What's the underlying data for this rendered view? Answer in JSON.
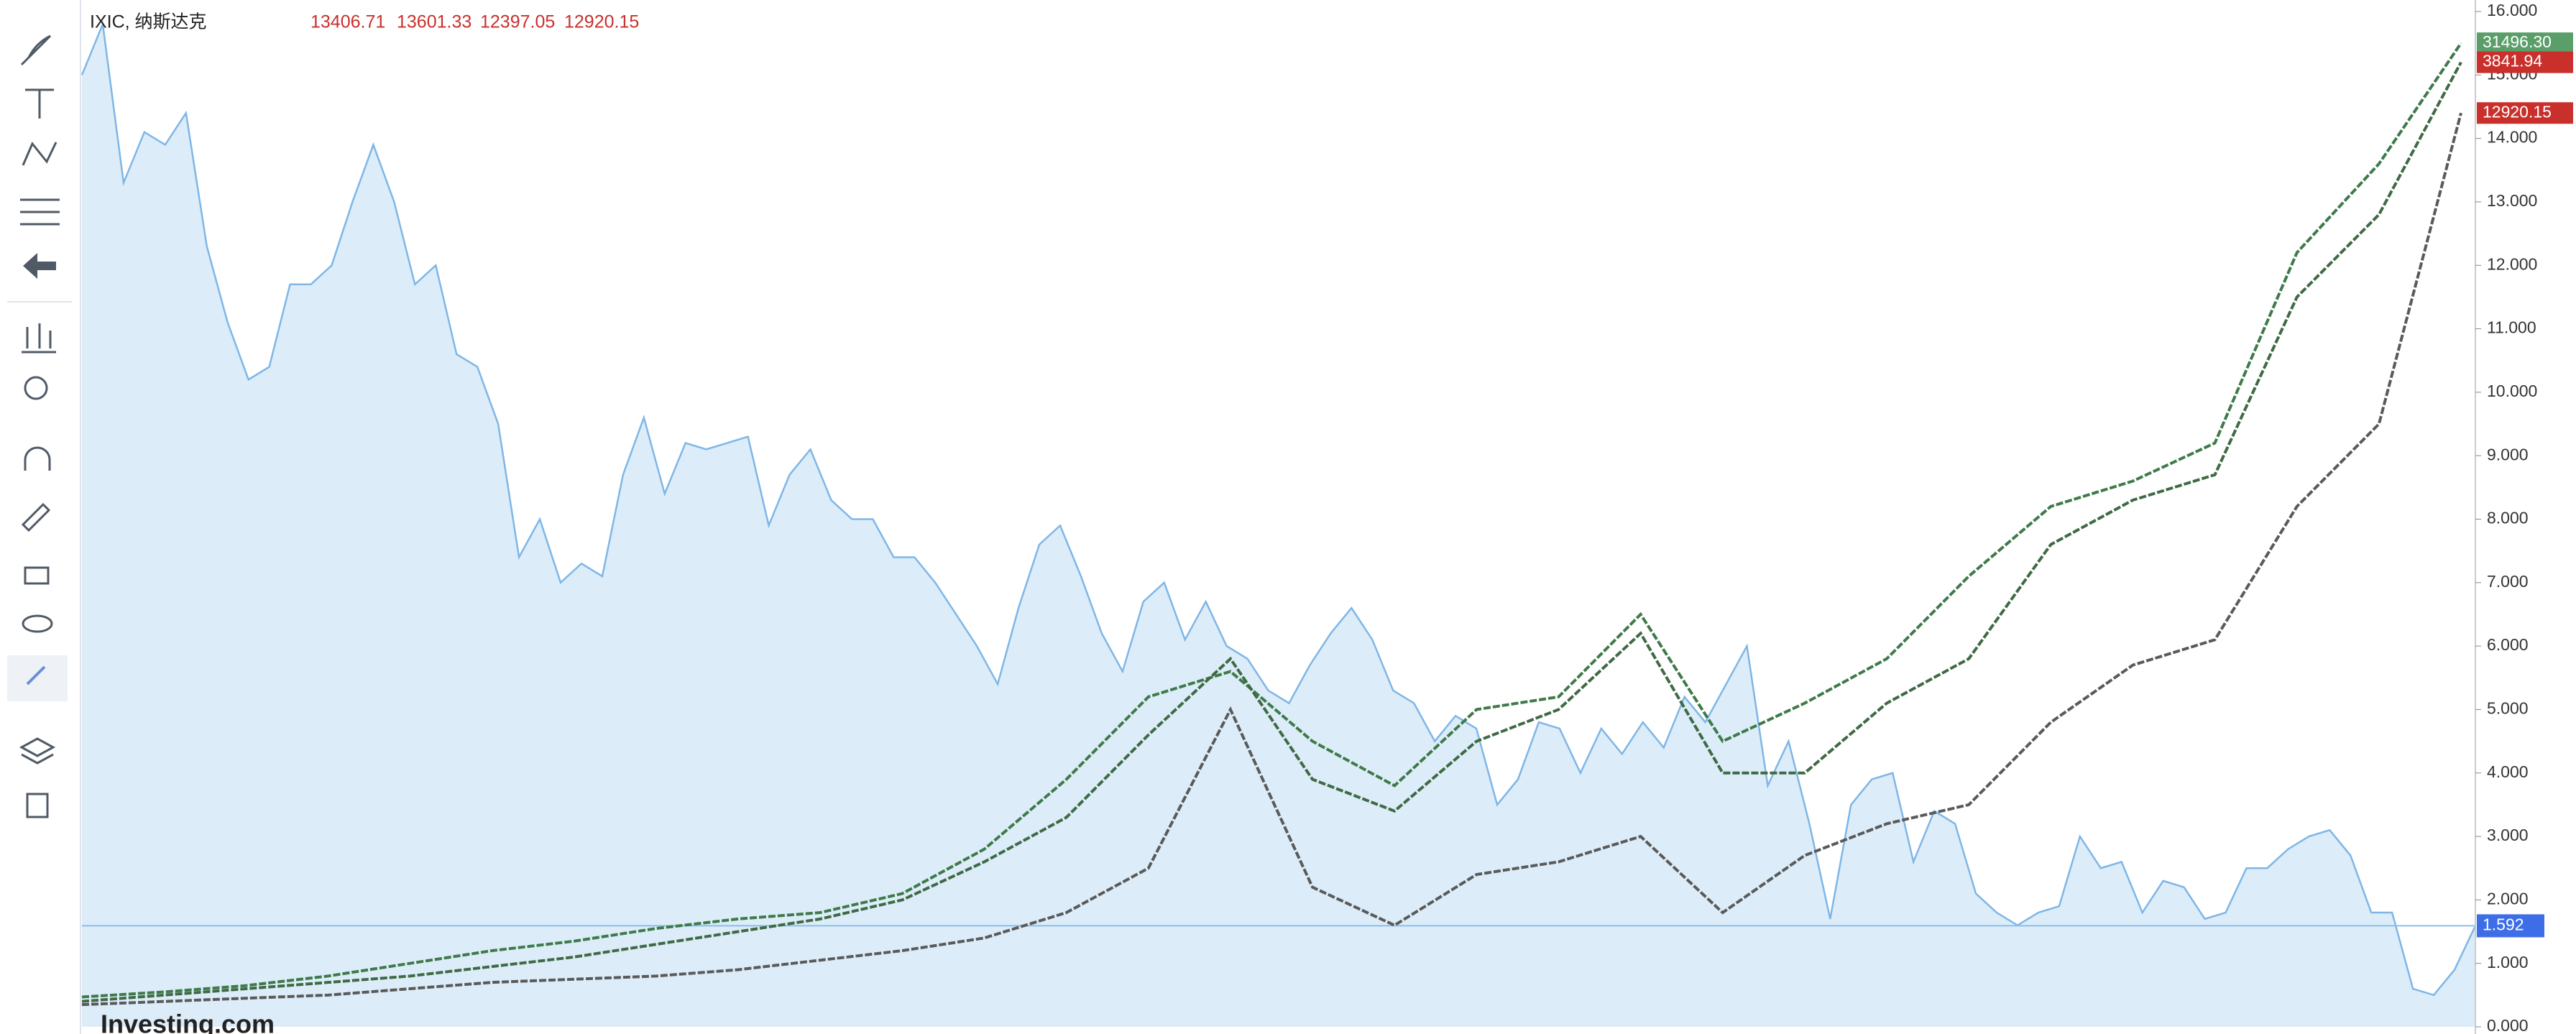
{
  "header": {
    "symbol": "IXIC, 纳斯达克",
    "ohlc": [
      "13406.71",
      "13601.33",
      "12397.05",
      "12920.15"
    ]
  },
  "logo": "Investing.com",
  "chart_data": {
    "type": "line",
    "ylim": [
      0,
      16
    ],
    "yticks": [
      {
        "value": 0,
        "label": "0.000"
      },
      {
        "value": 1,
        "label": "1.000"
      },
      {
        "value": 2,
        "label": "2.000"
      },
      {
        "value": 3,
        "label": "3.000"
      },
      {
        "value": 4,
        "label": "4.000"
      },
      {
        "value": 5,
        "label": "5.000"
      },
      {
        "value": 6,
        "label": "6.000"
      },
      {
        "value": 7,
        "label": "7.000"
      },
      {
        "value": 8,
        "label": "8.000"
      },
      {
        "value": 9,
        "label": "9.000"
      },
      {
        "value": 10,
        "label": "10.000"
      },
      {
        "value": 11,
        "label": "11.000"
      },
      {
        "value": 12,
        "label": "12.000"
      },
      {
        "value": 13,
        "label": "13.000"
      },
      {
        "value": 14,
        "label": "14.000"
      },
      {
        "value": 15,
        "label": "15.000"
      },
      {
        "value": 16,
        "label": "16.000"
      }
    ],
    "area": {
      "color": "#7fb6e6",
      "fill": "#dcedf9",
      "last_label": "1.592",
      "last_value": 1.592,
      "label_color": "#3d6ee8",
      "values": [
        15.0,
        15.8,
        13.3,
        14.1,
        13.9,
        14.4,
        12.3,
        11.1,
        10.2,
        10.4,
        11.7,
        11.7,
        12.0,
        13.0,
        13.9,
        13.0,
        11.7,
        12.0,
        10.6,
        10.4,
        9.5,
        7.4,
        8.0,
        7.0,
        7.3,
        7.1,
        8.7,
        9.6,
        8.4,
        9.2,
        9.1,
        9.2,
        9.3,
        7.9,
        8.7,
        9.1,
        8.3,
        8.0,
        8.0,
        7.4,
        7.4,
        7.0,
        6.5,
        6.0,
        5.4,
        6.6,
        7.6,
        7.9,
        7.1,
        6.2,
        5.6,
        6.7,
        7.0,
        6.1,
        6.7,
        6.0,
        5.8,
        5.3,
        5.1,
        5.7,
        6.2,
        6.6,
        6.1,
        5.3,
        5.1,
        4.5,
        4.9,
        4.7,
        3.5,
        3.9,
        4.8,
        4.7,
        4.0,
        4.7,
        4.3,
        4.8,
        4.4,
        5.2,
        4.8,
        5.4,
        6.0,
        3.8,
        4.5,
        3.2,
        1.7,
        3.5,
        3.9,
        4.0,
        2.6,
        3.4,
        3.2,
        2.1,
        1.8,
        1.6,
        1.8,
        1.9,
        3.0,
        2.5,
        2.6,
        1.8,
        2.3,
        2.2,
        1.7,
        1.8,
        2.5,
        2.5,
        2.8,
        3.0,
        3.1,
        2.7,
        1.8,
        1.8,
        0.6,
        0.5,
        0.9,
        1.592
      ]
    },
    "series": [
      {
        "color": "#3f7a4a",
        "last_label": "31496.30",
        "label_color": "#5a9e6a",
        "values": [
          0.47,
          0.55,
          0.65,
          0.8,
          1.0,
          1.2,
          1.35,
          1.55,
          1.7,
          1.8,
          2.1,
          2.8,
          3.9,
          5.2,
          5.6,
          4.5,
          3.8,
          5.0,
          5.2,
          6.5,
          4.5,
          5.1,
          5.8,
          7.1,
          8.2,
          8.6,
          9.2,
          12.2,
          13.6,
          15.5
        ]
      },
      {
        "color": "#3f6a45",
        "last_label": "3841.94",
        "label_color": "#c9302c",
        "values": [
          0.4,
          0.5,
          0.6,
          0.7,
          0.8,
          0.95,
          1.1,
          1.3,
          1.5,
          1.7,
          2.0,
          2.6,
          3.3,
          4.6,
          5.8,
          3.9,
          3.4,
          4.5,
          5.0,
          6.2,
          4.0,
          4.0,
          5.1,
          5.8,
          7.6,
          8.3,
          8.7,
          11.5,
          12.8,
          15.2
        ]
      },
      {
        "color": "#5a5a5a",
        "last_label": "12920.15",
        "label_color": "#c9302c",
        "values": [
          0.35,
          0.4,
          0.45,
          0.5,
          0.6,
          0.7,
          0.75,
          0.8,
          0.9,
          1.05,
          1.2,
          1.4,
          1.8,
          2.5,
          5.0,
          2.2,
          1.6,
          2.4,
          2.6,
          3.0,
          1.8,
          2.7,
          3.2,
          3.5,
          4.8,
          5.7,
          6.1,
          8.2,
          9.5,
          14.4
        ]
      }
    ]
  }
}
